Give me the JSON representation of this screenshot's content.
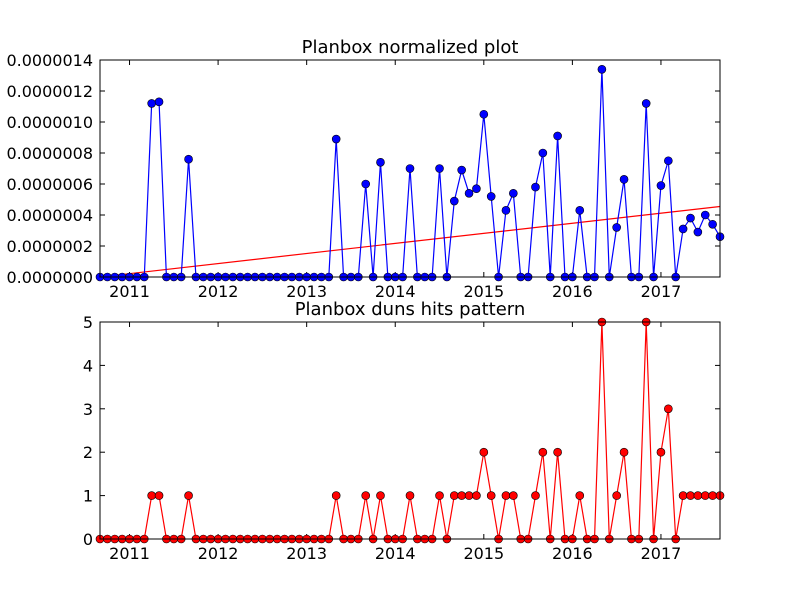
{
  "chart_data": [
    {
      "type": "line",
      "title": "Planbox normalized plot",
      "xlabel": "",
      "ylabel": "",
      "x_start": "2010-09",
      "x_tick_labels": [
        "2011",
        "2012",
        "2013",
        "2014",
        "2015",
        "2016",
        "2017"
      ],
      "x_tick_years": [
        2011,
        2012,
        2013,
        2014,
        2015,
        2016,
        2017
      ],
      "y_tick_labels": [
        "0.0000000",
        "0.0000002",
        "0.0000004",
        "0.0000006",
        "0.0000008",
        "0.0000010",
        "0.0000012",
        "0.0000014"
      ],
      "y_ticks": [
        0,
        2e-07,
        4e-07,
        6e-07,
        8e-07,
        1e-06,
        1.2e-06,
        1.4e-06
      ],
      "ylim": [
        0,
        1.4e-06
      ],
      "xlim": [
        "2010-09",
        "2017-09"
      ],
      "series": [
        {
          "color": "#0000ff",
          "marker": "circle",
          "values": [
            0,
            0,
            0,
            0,
            0,
            0,
            0,
            1.12e-06,
            1.13e-06,
            0,
            0,
            0,
            7.6e-07,
            0,
            0,
            0,
            0,
            0,
            0,
            0,
            0,
            0,
            0,
            0,
            0,
            0,
            0,
            0,
            0,
            0,
            0,
            0,
            8.9e-07,
            0,
            0,
            0,
            6e-07,
            0,
            7.4e-07,
            0,
            0,
            0,
            7e-07,
            0,
            0,
            0,
            7e-07,
            0,
            4.9e-07,
            6.9e-07,
            5.4e-07,
            5.7e-07,
            1.05e-06,
            5.2e-07,
            0,
            4.3e-07,
            5.4e-07,
            0,
            0,
            5.8e-07,
            8e-07,
            0,
            9.1e-07,
            0,
            0,
            4.3e-07,
            0,
            0,
            1.34e-06,
            0,
            3.2e-07,
            6.3e-07,
            0,
            0,
            1.12e-06,
            0,
            5.9e-07,
            7.5e-07,
            0,
            3.1e-07,
            3.8e-07,
            2.9e-07,
            4e-07,
            3.4e-07,
            2.6e-07
          ]
        }
      ],
      "trend_line": {
        "color": "#ff0000",
        "y_start": 0,
        "y_end": 4.55e-07
      },
      "grid": false,
      "legend": "none"
    },
    {
      "type": "line",
      "title": "Planbox duns hits pattern",
      "xlabel": "",
      "ylabel": "",
      "x_start": "2010-09",
      "x_tick_labels": [
        "2011",
        "2012",
        "2013",
        "2014",
        "2015",
        "2016",
        "2017"
      ],
      "x_tick_years": [
        2011,
        2012,
        2013,
        2014,
        2015,
        2016,
        2017
      ],
      "y_tick_labels": [
        "0",
        "1",
        "2",
        "3",
        "4",
        "5"
      ],
      "y_ticks": [
        0,
        1,
        2,
        3,
        4,
        5
      ],
      "ylim": [
        0,
        5
      ],
      "xlim": [
        "2010-09",
        "2017-09"
      ],
      "series": [
        {
          "color": "#ff0000",
          "marker": "circle",
          "values": [
            0,
            0,
            0,
            0,
            0,
            0,
            0,
            1,
            1,
            0,
            0,
            0,
            1,
            0,
            0,
            0,
            0,
            0,
            0,
            0,
            0,
            0,
            0,
            0,
            0,
            0,
            0,
            0,
            0,
            0,
            0,
            0,
            1,
            0,
            0,
            0,
            1,
            0,
            1,
            0,
            0,
            0,
            1,
            0,
            0,
            0,
            1,
            0,
            1,
            1,
            1,
            1,
            2,
            1,
            0,
            1,
            1,
            0,
            0,
            1,
            2,
            0,
            2,
            0,
            0,
            1,
            0,
            0,
            5,
            0,
            1,
            2,
            0,
            0,
            5,
            0,
            2,
            3,
            0,
            1,
            1,
            1,
            1,
            1,
            1
          ]
        }
      ],
      "grid": false,
      "legend": "none"
    }
  ]
}
